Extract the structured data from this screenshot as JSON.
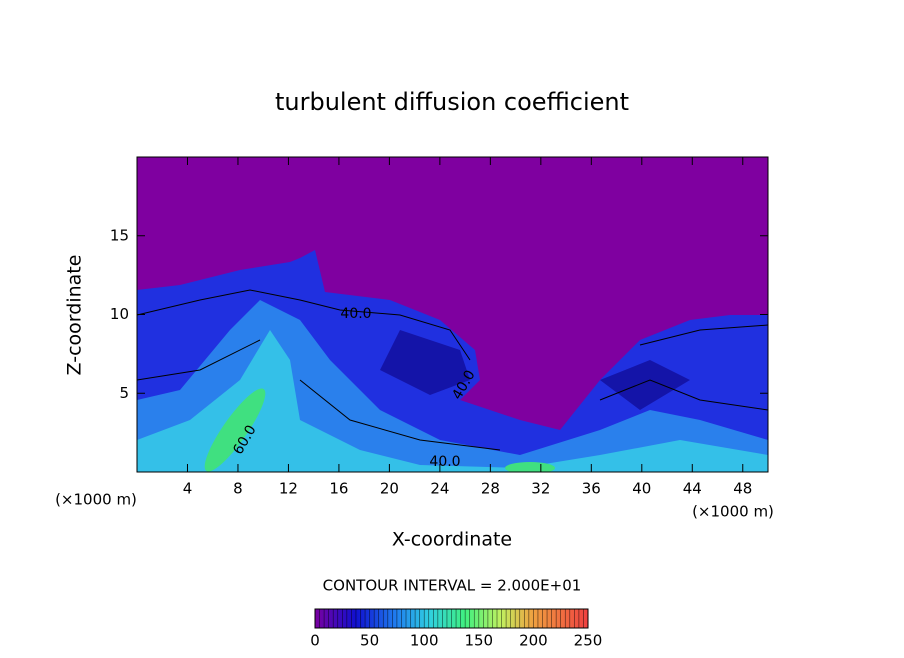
{
  "chart_data": {
    "type": "contour",
    "title": "turbulent diffusion coefficient",
    "xlabel": "X-coordinate",
    "ylabel": "Z-coordinate",
    "x_unit": "(×1000 m)",
    "xlim": [
      0,
      50
    ],
    "xticks": [
      4,
      8,
      12,
      16,
      20,
      24,
      28,
      32,
      36,
      40,
      44,
      48
    ],
    "ylim": [
      0,
      20
    ],
    "yticks": [
      5,
      10,
      15
    ],
    "contour_labels": [
      "40.0",
      "60.0",
      "40.0",
      "40.0"
    ],
    "contour_interval": "CONTOUR INTERVAL = 2.000E+01",
    "colorbar": {
      "lim": [
        0,
        250
      ],
      "ticks": [
        0,
        50,
        100,
        150,
        200,
        250
      ]
    }
  }
}
